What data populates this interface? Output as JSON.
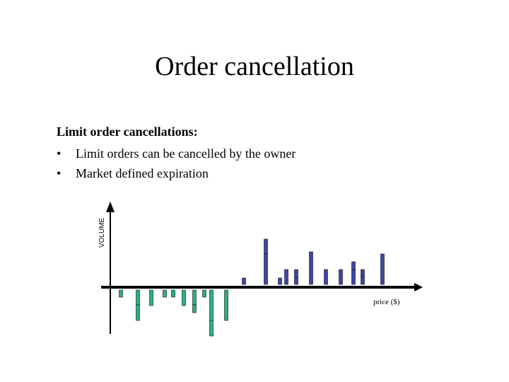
{
  "slide": {
    "title": "Order cancellation",
    "subheading": "Limit order cancellations:",
    "bullets": [
      "Limit orders can be cancelled by the owner",
      "Market defined expiration"
    ],
    "bullet_symbol": "•"
  },
  "chart_data": {
    "type": "bar",
    "ylabel": "VOLUME",
    "xlabel": "price ($)",
    "colors": {
      "buy": "#2fae8a",
      "sell": "#3d46a8",
      "axis": "#000000"
    },
    "sell_orders": [
      {
        "x": 345,
        "volume": 9,
        "stack": [
          9
        ]
      },
      {
        "x": 376,
        "volume": 64,
        "stack": [
          43,
          21
        ]
      },
      {
        "x": 396,
        "volume": 9,
        "stack": [
          9
        ]
      },
      {
        "x": 405,
        "volume": 21,
        "stack": [
          21
        ]
      },
      {
        "x": 419,
        "volume": 21,
        "stack": [
          10,
          11
        ]
      },
      {
        "x": 440,
        "volume": 46,
        "stack": [
          46
        ]
      },
      {
        "x": 461,
        "volume": 21,
        "stack": [
          21
        ]
      },
      {
        "x": 482,
        "volume": 21,
        "stack": [
          21
        ]
      },
      {
        "x": 500,
        "volume": 32,
        "stack": [
          21,
          11
        ]
      },
      {
        "x": 513,
        "volume": 21,
        "stack": [
          11,
          10
        ]
      },
      {
        "x": 541,
        "volume": 43,
        "stack": [
          43
        ]
      }
    ],
    "buy_orders": [
      {
        "x": 171,
        "volume": 10,
        "stack": [
          10
        ]
      },
      {
        "x": 195,
        "volume": 43,
        "stack": [
          21,
          22
        ]
      },
      {
        "x": 214,
        "volume": 22,
        "stack": [
          22
        ]
      },
      {
        "x": 233,
        "volume": 10,
        "stack": [
          10
        ]
      },
      {
        "x": 245,
        "volume": 10,
        "stack": [
          10
        ]
      },
      {
        "x": 260,
        "volume": 22,
        "stack": [
          22
        ]
      },
      {
        "x": 275,
        "volume": 32,
        "stack": [
          21,
          11
        ]
      },
      {
        "x": 289,
        "volume": 10,
        "stack": [
          10
        ]
      },
      {
        "x": 299,
        "volume": 65,
        "stack": [
          43,
          22
        ]
      },
      {
        "x": 320,
        "volume": 43,
        "stack": [
          43
        ]
      }
    ]
  }
}
